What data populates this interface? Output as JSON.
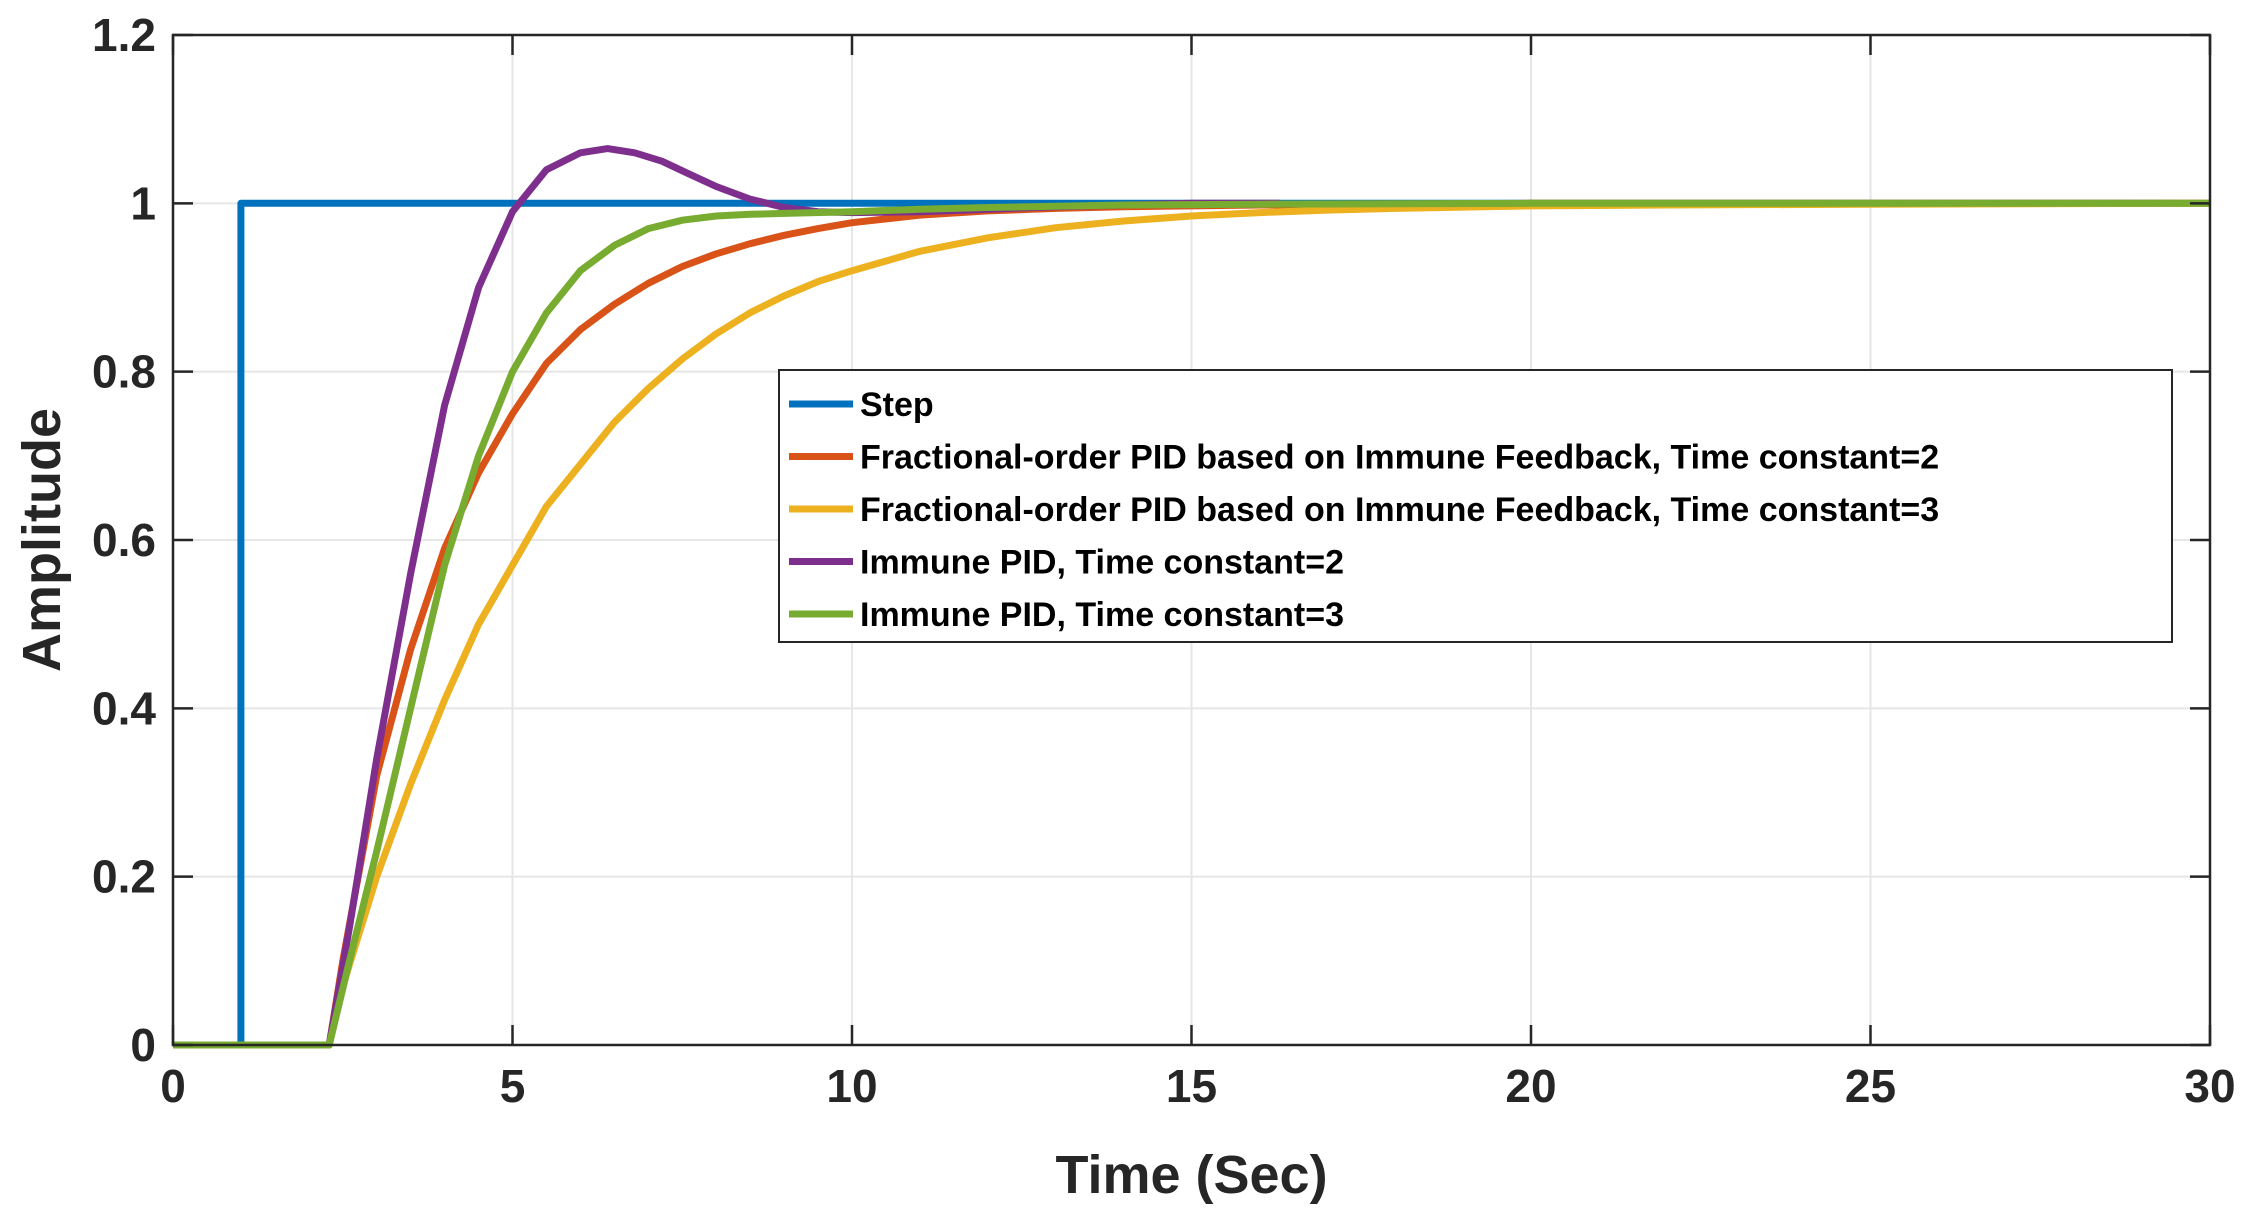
{
  "chart_data": {
    "type": "line",
    "title": "",
    "xlabel": "Time (Sec)",
    "ylabel": "Amplitude",
    "xlim": [
      0,
      30
    ],
    "ylim": [
      0,
      1.2
    ],
    "xticks": [
      0,
      5,
      10,
      15,
      20,
      25,
      30
    ],
    "xtick_labels": [
      "0",
      "5",
      "10",
      "15",
      "20",
      "25",
      "30"
    ],
    "yticks": [
      0,
      0.2,
      0.4,
      0.6,
      0.8,
      1,
      1.2
    ],
    "ytick_labels": [
      "0",
      "0.2",
      "0.4",
      "0.6",
      "0.8",
      "1",
      "1.2"
    ],
    "grid": true,
    "legend_position": "center-right",
    "series": [
      {
        "name": "Step",
        "color": "#0072BD",
        "x": [
          0,
          1,
          1,
          30
        ],
        "y": [
          0,
          0,
          1,
          1
        ]
      },
      {
        "name": "Fractional-order PID based on Immune Feedback, Time constant=2",
        "color": "#D95319",
        "x": [
          0,
          2.3,
          2.5,
          3,
          3.5,
          4,
          4.5,
          5,
          5.5,
          6,
          6.5,
          7,
          7.5,
          8,
          8.5,
          9,
          9.5,
          10,
          11,
          12,
          13,
          14,
          15,
          16,
          18,
          20,
          22,
          25,
          30
        ],
        "y": [
          0,
          0,
          0.1,
          0.32,
          0.47,
          0.59,
          0.68,
          0.75,
          0.81,
          0.85,
          0.88,
          0.905,
          0.925,
          0.94,
          0.952,
          0.962,
          0.97,
          0.977,
          0.986,
          0.991,
          0.994,
          0.996,
          0.997,
          0.998,
          0.999,
          1,
          1,
          1,
          1
        ]
      },
      {
        "name": "Fractional-order PID based on Immune Feedback, Time constant=3",
        "color": "#EDB120",
        "x": [
          0,
          2.3,
          2.5,
          3,
          3.5,
          4,
          4.5,
          5,
          5.5,
          6,
          6.5,
          7,
          7.5,
          8,
          8.5,
          9,
          9.5,
          10,
          11,
          12,
          13,
          14,
          15,
          16,
          17,
          18,
          20,
          22,
          25,
          30
        ],
        "y": [
          0,
          0,
          0.07,
          0.2,
          0.31,
          0.41,
          0.5,
          0.57,
          0.64,
          0.69,
          0.74,
          0.78,
          0.815,
          0.845,
          0.87,
          0.89,
          0.907,
          0.92,
          0.943,
          0.959,
          0.971,
          0.979,
          0.985,
          0.989,
          0.992,
          0.994,
          0.997,
          0.998,
          0.999,
          1
        ]
      },
      {
        "name": "Immune PID, Time constant=2",
        "color": "#7E2F8E",
        "x": [
          0,
          2.3,
          2.6,
          3,
          3.5,
          4,
          4.5,
          5,
          5.5,
          6,
          6.4,
          6.8,
          7.2,
          7.6,
          8,
          8.5,
          9,
          9.5,
          10,
          11,
          12,
          13,
          14,
          15,
          16.3
        ],
        "y": [
          0,
          0,
          0.14,
          0.34,
          0.56,
          0.76,
          0.9,
          0.99,
          1.04,
          1.06,
          1.065,
          1.06,
          1.05,
          1.035,
          1.02,
          1.005,
          0.995,
          0.99,
          0.989,
          0.99,
          0.993,
          0.996,
          0.998,
          1,
          1
        ]
      },
      {
        "name": "Immune PID, Time constant=3",
        "color": "#77AC30",
        "x": [
          0,
          2.3,
          2.6,
          3,
          3.5,
          4,
          4.5,
          5,
          5.5,
          6,
          6.5,
          7,
          7.5,
          8,
          8.5,
          9,
          10,
          11,
          12,
          14,
          16,
          20,
          30
        ],
        "y": [
          0,
          0,
          0.1,
          0.23,
          0.4,
          0.57,
          0.7,
          0.8,
          0.87,
          0.92,
          0.95,
          0.97,
          0.98,
          0.985,
          0.987,
          0.988,
          0.99,
          0.993,
          0.995,
          0.998,
          0.999,
          1,
          1
        ]
      }
    ]
  }
}
